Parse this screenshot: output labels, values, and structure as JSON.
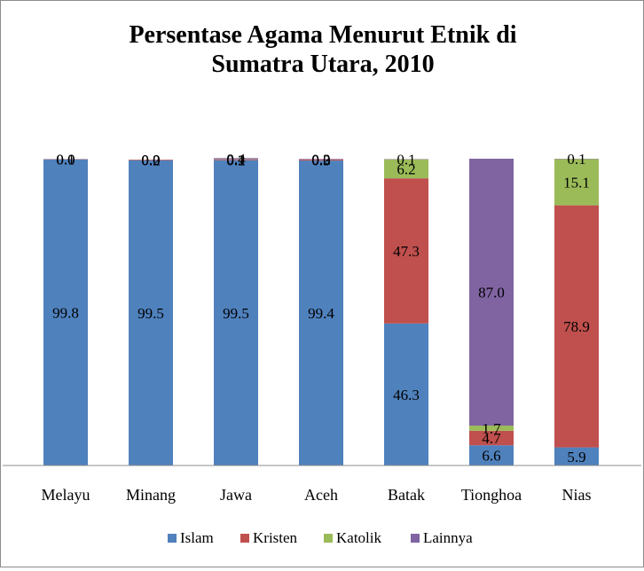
{
  "chart_data": {
    "type": "bar",
    "stacked": true,
    "title_lines": [
      "Persentase Agama Menurut Etnik di",
      "Sumatra Utara, 2010"
    ],
    "xlabel": "",
    "ylabel": "",
    "ylim": [
      0,
      100
    ],
    "grid": false,
    "legend_position": "bottom",
    "categories": [
      "Melayu",
      "Minang",
      "Jawa",
      "Aceh",
      "Batak",
      "Tionghoa",
      "Nias"
    ],
    "series": [
      {
        "name": "Islam",
        "color": "#4f81bd",
        "values": [
          99.8,
          99.5,
          99.5,
          99.4,
          46.3,
          6.6,
          5.9
        ],
        "labels": [
          "99.8",
          "99.5",
          "99.5",
          "99.4",
          "46.3",
          "6.6",
          "5.9"
        ]
      },
      {
        "name": "Kristen",
        "color": "#c0504d",
        "values": [
          0.1,
          0.2,
          0.2,
          0.3,
          47.3,
          4.7,
          78.9
        ],
        "labels": [
          "0.1",
          "0.2",
          "0.2",
          "0.3",
          "47.3",
          "4.7",
          "78.9"
        ]
      },
      {
        "name": "Katolik",
        "color": "#9bbb59",
        "values": [
          0.0,
          0.0,
          0.1,
          0.0,
          6.2,
          1.7,
          15.1
        ],
        "labels": [
          "0.0",
          "0.0",
          "0.1",
          "0.0",
          "6.2",
          "1.7",
          "15.1"
        ]
      },
      {
        "name": "Lainnya",
        "color": "#8064a2",
        "values": [
          0.0,
          0.0,
          0.4,
          0.2,
          0.1,
          87.0,
          0.1
        ],
        "labels": [
          "0.0",
          "0.0",
          "0.4",
          "0.2",
          "0.1",
          "87.0",
          "0.1"
        ]
      }
    ]
  }
}
